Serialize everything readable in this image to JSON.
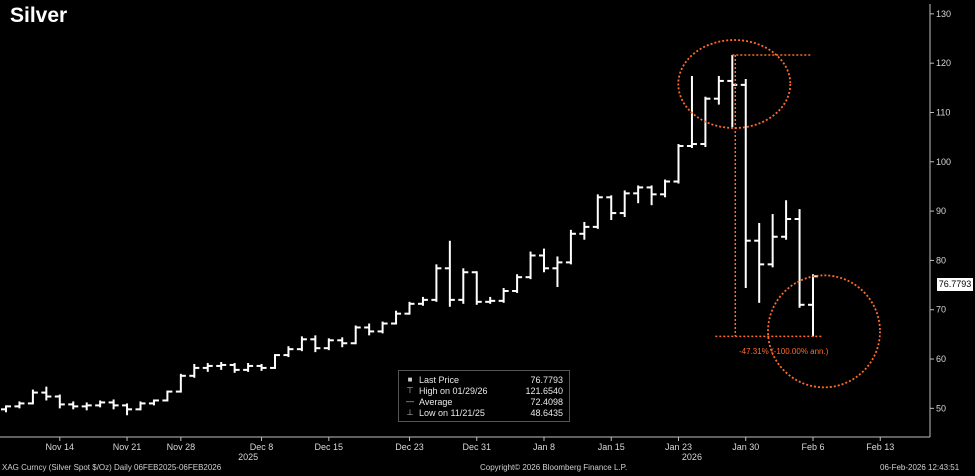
{
  "chart_data": {
    "type": "ohlc",
    "title": "Silver",
    "ylim": [
      45,
      132
    ],
    "y_ticks": [
      50,
      60,
      70,
      80,
      90,
      100,
      110,
      120,
      130
    ],
    "x_tick_labels": [
      "Nov 14",
      "Nov 21",
      "Nov 28",
      "Dec 8",
      "Dec 15",
      "Dec 23",
      "Dec 31",
      "Jan 8",
      "Jan 15",
      "Jan 23",
      "Jan 30",
      "Feb 6",
      "Feb 13"
    ],
    "year_labels": [
      "2025",
      "2026"
    ],
    "bars": [
      {
        "date": "2025-11-10",
        "open": 49.8,
        "high": 50.6,
        "low": 49.2,
        "close": 50.4
      },
      {
        "date": "2025-11-11",
        "open": 50.4,
        "high": 51.4,
        "low": 50.0,
        "close": 51.0
      },
      {
        "date": "2025-11-12",
        "open": 51.0,
        "high": 53.8,
        "low": 50.8,
        "close": 53.2
      },
      {
        "date": "2025-11-13",
        "open": 53.2,
        "high": 54.4,
        "low": 51.6,
        "close": 52.4
      },
      {
        "date": "2025-11-14",
        "open": 52.4,
        "high": 52.8,
        "low": 50.0,
        "close": 50.8
      },
      {
        "date": "2025-11-17",
        "open": 50.8,
        "high": 51.4,
        "low": 49.8,
        "close": 50.4
      },
      {
        "date": "2025-11-18",
        "open": 50.4,
        "high": 51.2,
        "low": 49.6,
        "close": 50.6
      },
      {
        "date": "2025-11-19",
        "open": 50.6,
        "high": 51.6,
        "low": 50.2,
        "close": 51.2
      },
      {
        "date": "2025-11-20",
        "open": 51.2,
        "high": 51.8,
        "low": 49.8,
        "close": 50.6
      },
      {
        "date": "2025-11-21",
        "open": 50.6,
        "high": 51.0,
        "low": 48.6,
        "close": 49.8
      },
      {
        "date": "2025-11-24",
        "open": 49.8,
        "high": 51.4,
        "low": 49.6,
        "close": 51.0
      },
      {
        "date": "2025-11-25",
        "open": 51.0,
        "high": 51.8,
        "low": 50.6,
        "close": 51.6
      },
      {
        "date": "2025-11-26",
        "open": 51.6,
        "high": 53.6,
        "low": 51.4,
        "close": 53.4
      },
      {
        "date": "2025-11-28",
        "open": 53.4,
        "high": 57.0,
        "low": 53.2,
        "close": 56.6
      },
      {
        "date": "2025-12-01",
        "open": 56.6,
        "high": 59.0,
        "low": 56.2,
        "close": 58.2
      },
      {
        "date": "2025-12-02",
        "open": 58.2,
        "high": 59.2,
        "low": 57.4,
        "close": 58.6
      },
      {
        "date": "2025-12-03",
        "open": 58.6,
        "high": 59.4,
        "low": 57.8,
        "close": 58.8
      },
      {
        "date": "2025-12-04",
        "open": 58.8,
        "high": 59.2,
        "low": 57.2,
        "close": 57.8
      },
      {
        "date": "2025-12-05",
        "open": 57.8,
        "high": 59.2,
        "low": 57.4,
        "close": 58.6
      },
      {
        "date": "2025-12-08",
        "open": 58.6,
        "high": 59.0,
        "low": 57.6,
        "close": 58.2
      },
      {
        "date": "2025-12-09",
        "open": 58.2,
        "high": 61.0,
        "low": 58.0,
        "close": 60.8
      },
      {
        "date": "2025-12-10",
        "open": 60.8,
        "high": 62.6,
        "low": 60.4,
        "close": 62.0
      },
      {
        "date": "2025-12-11",
        "open": 62.0,
        "high": 64.6,
        "low": 61.6,
        "close": 64.0
      },
      {
        "date": "2025-12-12",
        "open": 64.0,
        "high": 64.8,
        "low": 61.4,
        "close": 62.2
      },
      {
        "date": "2025-12-15",
        "open": 62.2,
        "high": 64.2,
        "low": 61.8,
        "close": 63.8
      },
      {
        "date": "2025-12-16",
        "open": 63.8,
        "high": 64.4,
        "low": 62.4,
        "close": 63.2
      },
      {
        "date": "2025-12-17",
        "open": 63.2,
        "high": 66.8,
        "low": 63.0,
        "close": 66.4
      },
      {
        "date": "2025-12-18",
        "open": 66.4,
        "high": 67.2,
        "low": 64.8,
        "close": 65.6
      },
      {
        "date": "2025-12-19",
        "open": 65.6,
        "high": 67.6,
        "low": 65.2,
        "close": 67.2
      },
      {
        "date": "2025-12-22",
        "open": 67.2,
        "high": 69.8,
        "low": 67.0,
        "close": 69.2
      },
      {
        "date": "2025-12-23",
        "open": 69.2,
        "high": 71.6,
        "low": 69.0,
        "close": 71.2
      },
      {
        "date": "2025-12-24",
        "open": 71.2,
        "high": 72.6,
        "low": 70.8,
        "close": 72.0
      },
      {
        "date": "2025-12-26",
        "open": 72.0,
        "high": 79.2,
        "low": 71.6,
        "close": 78.4
      },
      {
        "date": "2025-12-29",
        "open": 78.4,
        "high": 84.0,
        "low": 70.6,
        "close": 72.0
      },
      {
        "date": "2025-12-30",
        "open": 72.0,
        "high": 78.4,
        "low": 71.2,
        "close": 77.6
      },
      {
        "date": "2025-12-31",
        "open": 77.6,
        "high": 77.8,
        "low": 71.0,
        "close": 71.6
      },
      {
        "date": "2026-01-02",
        "open": 71.6,
        "high": 72.6,
        "low": 71.2,
        "close": 71.8
      },
      {
        "date": "2026-01-05",
        "open": 71.8,
        "high": 74.4,
        "low": 71.4,
        "close": 73.8
      },
      {
        "date": "2026-01-06",
        "open": 73.8,
        "high": 77.2,
        "low": 73.4,
        "close": 76.6
      },
      {
        "date": "2026-01-07",
        "open": 76.6,
        "high": 81.8,
        "low": 76.2,
        "close": 81.0
      },
      {
        "date": "2026-01-08",
        "open": 81.0,
        "high": 82.4,
        "low": 77.6,
        "close": 78.4
      },
      {
        "date": "2026-01-09",
        "open": 78.4,
        "high": 80.8,
        "low": 74.6,
        "close": 79.6
      },
      {
        "date": "2026-01-12",
        "open": 79.6,
        "high": 86.2,
        "low": 79.2,
        "close": 85.4
      },
      {
        "date": "2026-01-13",
        "open": 85.4,
        "high": 87.8,
        "low": 84.2,
        "close": 86.8
      },
      {
        "date": "2026-01-14",
        "open": 86.8,
        "high": 93.4,
        "low": 86.4,
        "close": 92.8
      },
      {
        "date": "2026-01-15",
        "open": 92.8,
        "high": 93.2,
        "low": 88.2,
        "close": 89.6
      },
      {
        "date": "2026-01-16",
        "open": 89.6,
        "high": 94.2,
        "low": 88.8,
        "close": 93.6
      },
      {
        "date": "2026-01-20",
        "open": 93.6,
        "high": 95.2,
        "low": 91.6,
        "close": 94.8
      },
      {
        "date": "2026-01-21",
        "open": 94.8,
        "high": 95.2,
        "low": 91.2,
        "close": 93.4
      },
      {
        "date": "2026-01-22",
        "open": 93.4,
        "high": 96.4,
        "low": 92.8,
        "close": 96.0
      },
      {
        "date": "2026-01-23",
        "open": 96.0,
        "high": 103.6,
        "low": 95.6,
        "close": 103.2
      },
      {
        "date": "2026-01-26",
        "open": 103.2,
        "high": 117.4,
        "low": 102.8,
        "close": 103.6
      },
      {
        "date": "2026-01-27",
        "open": 103.6,
        "high": 113.2,
        "low": 103.0,
        "close": 112.8
      },
      {
        "date": "2026-01-28",
        "open": 112.8,
        "high": 117.4,
        "low": 111.6,
        "close": 116.4
      },
      {
        "date": "2026-01-29",
        "open": 116.4,
        "high": 121.654,
        "low": 107.0,
        "close": 115.6
      },
      {
        "date": "2026-01-30",
        "open": 115.6,
        "high": 116.8,
        "low": 74.4,
        "close": 84.0
      },
      {
        "date": "2026-02-02",
        "open": 84.0,
        "high": 87.6,
        "low": 71.4,
        "close": 79.2
      },
      {
        "date": "2026-02-03",
        "open": 79.2,
        "high": 89.4,
        "low": 78.6,
        "close": 84.8
      },
      {
        "date": "2026-02-04",
        "open": 84.8,
        "high": 92.2,
        "low": 84.2,
        "close": 88.4
      },
      {
        "date": "2026-02-05",
        "open": 88.4,
        "high": 90.4,
        "low": 70.4,
        "close": 71.0
      },
      {
        "date": "2026-02-06",
        "open": 71.0,
        "high": 77.2,
        "low": 64.6,
        "close": 76.7793
      }
    ],
    "high_marker": 121.654,
    "low_marker": 64.6,
    "annotation": "-47.31% (-100.00% ann.)",
    "last_price": "76.7793",
    "legend": [
      {
        "label": "Last Price",
        "value": "76.7793"
      },
      {
        "label": "High on 01/29/26",
        "value": "121.6540"
      },
      {
        "label": "Average",
        "value": "72.4098"
      },
      {
        "label": "Low on 11/21/25",
        "value": "48.6435"
      }
    ]
  },
  "footer": {
    "left": "XAG Curncy (Silver Spot  $/Oz) Daily 06FEB2025-06FEB2026",
    "center": "Copyright© 2026 Bloomberg Finance L.P.",
    "right": "06-Feb-2026 12:43:51"
  },
  "colors": {
    "background": "#000000",
    "bars": "#ffffff",
    "annotation": "#ff6a28"
  }
}
